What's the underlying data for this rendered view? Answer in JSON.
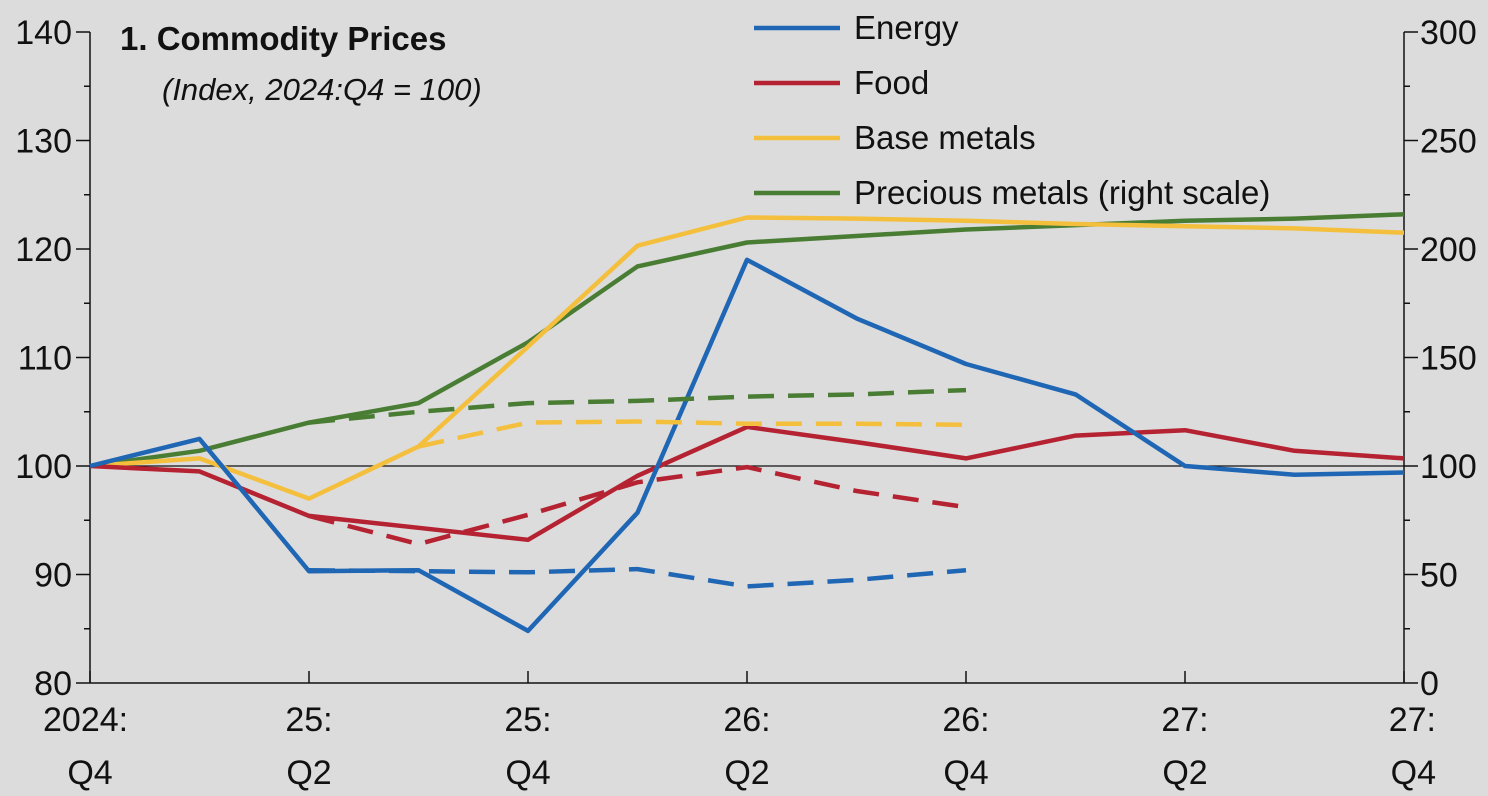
{
  "title": "1. Commodity Prices",
  "subtitle": "(Index, 2024:Q4 = 100)",
  "colors": {
    "energy": "#1f66b4",
    "food": "#b52232",
    "base_metals": "#f5bf3e",
    "precious_metals": "#4a7d34",
    "background": "#dcdcdc"
  },
  "chart_data": {
    "type": "line",
    "title": "1. Commodity Prices",
    "subtitle": "(Index, 2024:Q4 = 100)",
    "x_ticks": [
      {
        "line1": "2024:",
        "line2": "Q4"
      },
      {
        "line1": "25:",
        "line2": "Q2"
      },
      {
        "line1": "25:",
        "line2": "Q4"
      },
      {
        "line1": "26:",
        "line2": "Q2"
      },
      {
        "line1": "26:",
        "line2": "Q4"
      },
      {
        "line1": "27:",
        "line2": "Q2"
      },
      {
        "line1": "27:",
        "line2": "Q4"
      }
    ],
    "x_range_quarters": [
      0,
      12
    ],
    "left_axis": {
      "ylim": [
        80,
        140
      ],
      "ticks": [
        80,
        90,
        100,
        110,
        120,
        130,
        140
      ],
      "minor_ticks": [
        85,
        95,
        105,
        115,
        125,
        135
      ]
    },
    "right_axis": {
      "ylim": [
        0,
        300
      ],
      "ticks": [
        0,
        50,
        100,
        150,
        200,
        250,
        300
      ],
      "minor_ticks": [
        25,
        75,
        125,
        175,
        225,
        275
      ]
    },
    "reference_line": 100,
    "legend": {
      "placement": "top-center",
      "entries": [
        {
          "label": "Energy",
          "color_key": "energy"
        },
        {
          "label": "Food",
          "color_key": "food"
        },
        {
          "label": "Base metals",
          "color_key": "base_metals"
        },
        {
          "label": "Precious metals (right scale)",
          "color_key": "precious_metals"
        }
      ]
    },
    "series": [
      {
        "name": "Energy",
        "color_key": "energy",
        "axis": "left",
        "style": "solid",
        "x": [
          0,
          1,
          2,
          3,
          4,
          5,
          6,
          7,
          8,
          9,
          10,
          11,
          12
        ],
        "y": [
          100,
          102.5,
          90.3,
          90.4,
          84.8,
          95.7,
          119,
          113.6,
          109.4,
          106.6,
          100,
          99.2,
          99.4
        ]
      },
      {
        "name": "Food",
        "color_key": "food",
        "axis": "left",
        "style": "solid",
        "x": [
          0,
          1,
          2,
          3,
          4,
          5,
          6,
          7,
          8,
          9,
          10,
          11,
          12
        ],
        "y": [
          100,
          99.5,
          95.4,
          94.3,
          93.2,
          99.1,
          103.6,
          102.2,
          100.7,
          102.8,
          103.3,
          101.4,
          100.7
        ]
      },
      {
        "name": "Base metals",
        "color_key": "base_metals",
        "axis": "left",
        "style": "solid",
        "x": [
          0,
          1,
          2,
          3,
          4,
          5,
          6,
          7,
          8,
          9,
          10,
          11,
          12
        ],
        "y": [
          100,
          100.7,
          97,
          101.8,
          111,
          120.3,
          122.9,
          122.8,
          122.6,
          122.3,
          122.1,
          121.9,
          121.5
        ]
      },
      {
        "name": "Precious metals (right scale)",
        "color_key": "precious_metals",
        "axis": "right",
        "style": "solid",
        "x": [
          0,
          1,
          2,
          3,
          4,
          5,
          6,
          7,
          8,
          9,
          10,
          11,
          12
        ],
        "y": [
          100,
          107,
          120,
          129,
          157,
          192,
          203,
          206,
          209,
          211,
          213,
          214,
          216
        ]
      },
      {
        "color_key": "energy",
        "axis": "left",
        "style": "dashed",
        "x": [
          2,
          3,
          4,
          5,
          6,
          7,
          8
        ],
        "y": [
          90.4,
          90.3,
          90.2,
          90.5,
          88.9,
          89.5,
          90.4
        ]
      },
      {
        "color_key": "food",
        "axis": "left",
        "style": "dashed",
        "x": [
          2,
          3,
          4,
          5,
          6,
          7,
          8
        ],
        "y": [
          95.4,
          92.8,
          95.5,
          98.5,
          99.9,
          97.7,
          96.2
        ]
      },
      {
        "color_key": "base_metals",
        "axis": "left",
        "style": "dashed",
        "x": [
          3,
          4,
          5,
          6,
          7,
          8
        ],
        "y": [
          101.8,
          104,
          104.1,
          103.9,
          103.9,
          103.8
        ]
      },
      {
        "color_key": "precious_metals",
        "axis": "right",
        "style": "dashed",
        "x": [
          2,
          3,
          4,
          5,
          6,
          7,
          8
        ],
        "y": [
          120,
          125,
          129,
          130,
          132,
          133,
          135
        ]
      }
    ]
  }
}
